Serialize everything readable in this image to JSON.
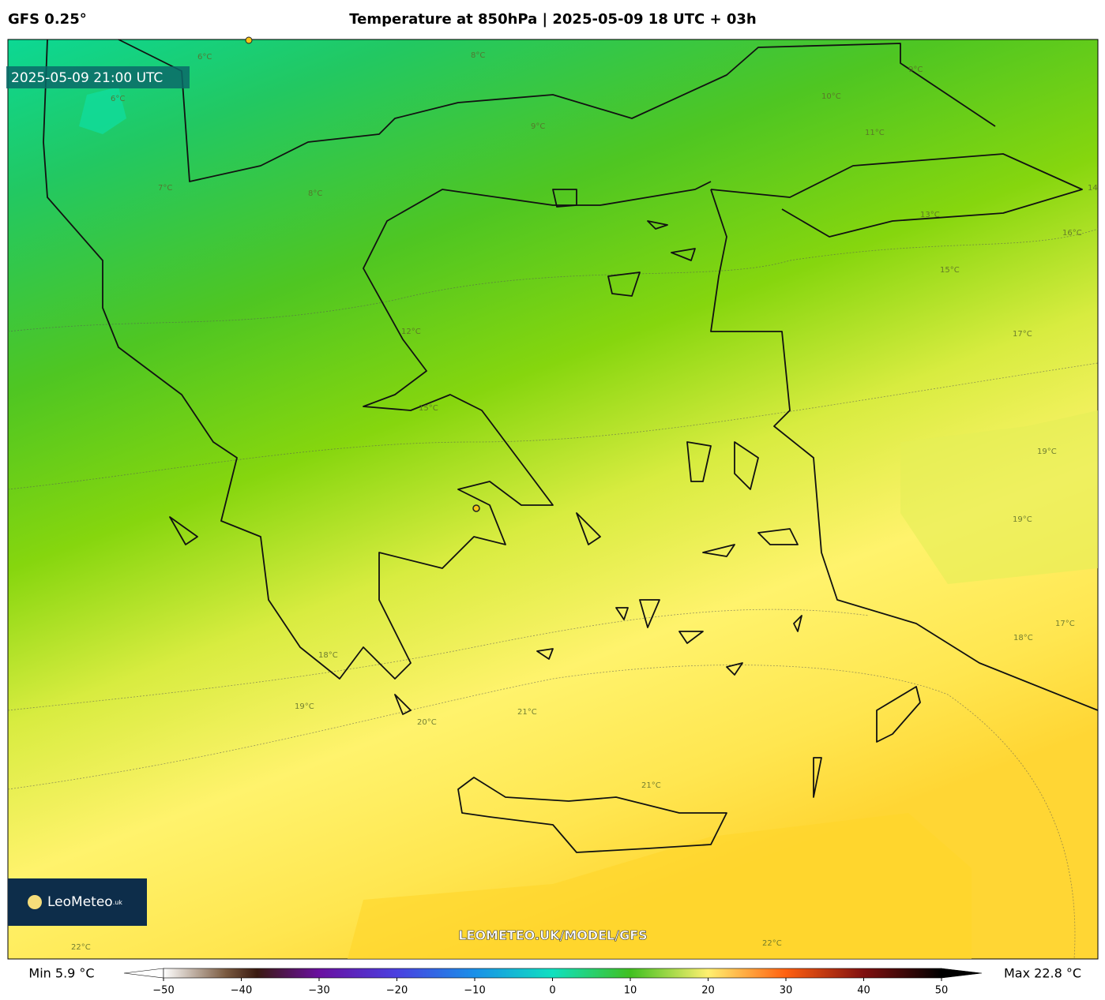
{
  "header": {
    "model": "GFS 0.25°",
    "title": "Temperature at 850hPa | 2025-05-09 18 UTC + 03h"
  },
  "valid_time": "2025-05-09 21:00 UTC",
  "watermark": "LEOMETEO.UK/MODEL/GFS",
  "logo": {
    "name": "LeoMeteo",
    "suffix": ".uk"
  },
  "contour_labels": [
    "6°C",
    "6°C",
    "7°C",
    "8°C",
    "8°C",
    "9°C",
    "9°C",
    "10°C",
    "11°C",
    "13°C",
    "14",
    "16°C",
    "15°C",
    "17°C",
    "12°C",
    "15°C",
    "19°C",
    "19°C",
    "17°C",
    "18°C",
    "18°C",
    "19°C",
    "20°C",
    "21°C",
    "21°C",
    "22°C",
    "22°C"
  ],
  "colorbar": {
    "min_label": "Min 5.9 °C",
    "max_label": "Max 22.8 °C",
    "range": [
      -50,
      50
    ],
    "ticks": [
      {
        "value": -50,
        "label": "−50"
      },
      {
        "value": -40,
        "label": "−40"
      },
      {
        "value": -30,
        "label": "−30"
      },
      {
        "value": -20,
        "label": "−20"
      },
      {
        "value": -10,
        "label": "−10"
      },
      0,
      10,
      20,
      30,
      40,
      50
    ],
    "stops": [
      {
        "value": -50,
        "color": "#ffffff"
      },
      {
        "value": -42,
        "color": "#7a5a40"
      },
      {
        "value": -38,
        "color": "#3a1a10"
      },
      {
        "value": -30,
        "color": "#6a10a0"
      },
      {
        "value": -20,
        "color": "#4a40e0"
      },
      {
        "value": -10,
        "color": "#1a90e8"
      },
      {
        "value": 0,
        "color": "#10e0c0"
      },
      {
        "value": 10,
        "color": "#40c020"
      },
      {
        "value": 20,
        "color": "#fff070"
      },
      {
        "value": 30,
        "color": "#ff6010"
      },
      {
        "value": 40,
        "color": "#801010"
      },
      {
        "value": 50,
        "color": "#000000"
      }
    ]
  }
}
